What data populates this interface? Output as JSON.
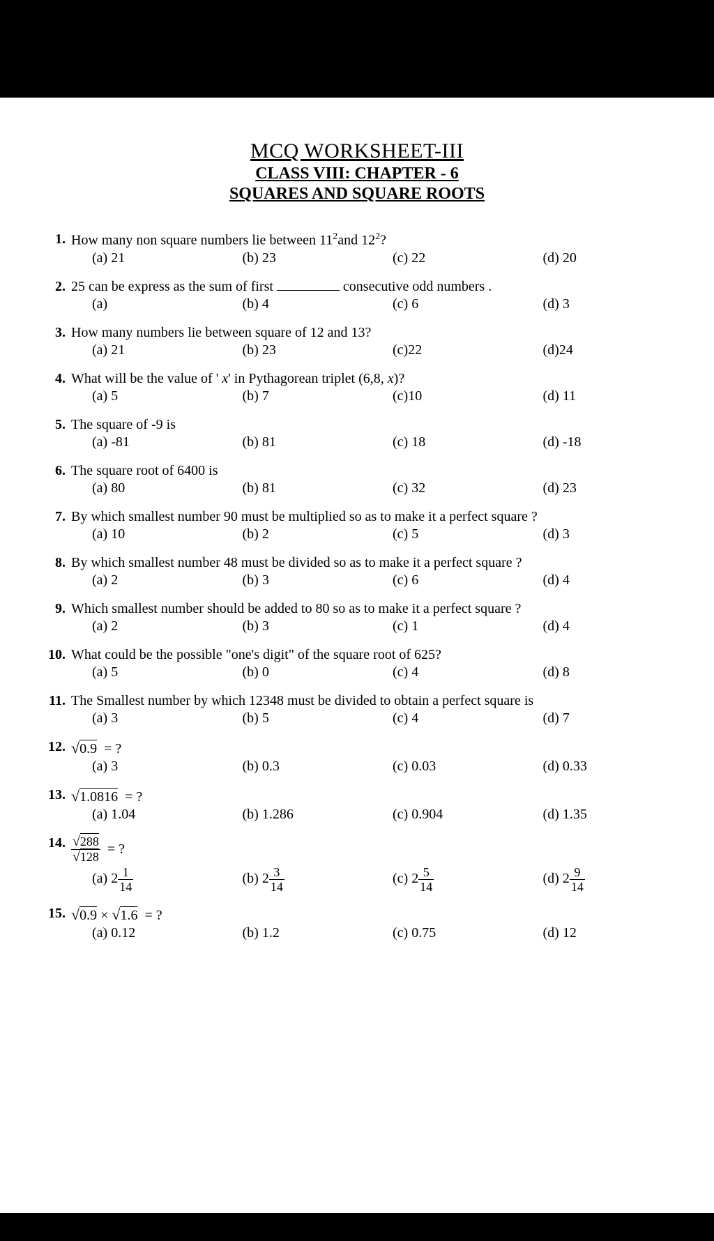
{
  "header": {
    "main": "MCQ WORKSHEET-III",
    "sub": "CLASS VIII: CHAPTER - 6",
    "topic": "SQUARES AND SQUARE ROOTS"
  },
  "questions": [
    {
      "num": "1.",
      "text_html": "How many non square numbers lie between 11<sup>2</sup>and 12<sup>2</sup>?",
      "opts": [
        "(a) 21",
        "(b) 23",
        "(c) 22",
        "(d) 20"
      ]
    },
    {
      "num": "2.",
      "text_html": "25 can be express as the sum of first <span class='blank'></span> consecutive odd numbers .",
      "opts": [
        "(a)",
        "(b) 4",
        "(c) 6",
        "(d) 3"
      ]
    },
    {
      "num": "3.",
      "text_html": "How many numbers lie between square of 12 and 13?",
      "opts": [
        "(a) 21",
        "(b) 23",
        "(c)22",
        "(d)24"
      ]
    },
    {
      "num": "4.",
      "text_html": "What will be the value of ' <i>x</i>' in Pythagorean triplet (6,8, <i>x</i>)?",
      "opts": [
        "(a) 5",
        "(b) 7",
        "(c)10",
        "(d) 11"
      ]
    },
    {
      "num": "5.",
      "text_html": "The square of -9 is",
      "opts": [
        "(a) -81",
        "(b) 81",
        "(c) 18",
        "(d) -18"
      ]
    },
    {
      "num": "6.",
      "text_html": "The square root of 6400 is",
      "opts": [
        "(a) 80",
        "(b) 81",
        "(c) 32",
        "(d) 23"
      ]
    },
    {
      "num": "7.",
      "text_html": "By which smallest number 90 must be multiplied so as to make it a perfect square ?",
      "opts": [
        "(a) 10",
        "(b) 2",
        "(c) 5",
        "(d) 3"
      ]
    },
    {
      "num": "8.",
      "text_html": "By which smallest number 48 must be divided so as to make it a perfect square ?",
      "opts": [
        "(a) 2",
        "(b) 3",
        "(c) 6",
        "(d) 4"
      ]
    },
    {
      "num": "9.",
      "text_html": "Which smallest number should be added to 80 so as to make it a perfect square ?",
      "opts": [
        "(a) 2",
        "(b) 3",
        "(c) 1",
        "(d) 4"
      ]
    },
    {
      "num": "10.",
      "text_html": "What could be the possible \"one's digit\" of the square root of 625?",
      "opts": [
        "(a) 5",
        "(b) 0",
        "(c) 4",
        "(d) 8"
      ]
    },
    {
      "num": "11.",
      "text_html": "The Smallest number by which 12348 must be divided to obtain a perfect square is",
      "opts": [
        "(a) 3",
        "(b) 5",
        "(c) 4",
        "(d) 7"
      ]
    },
    {
      "num": "12.",
      "text_html": "<span class='radical'>√</span><span class='sqrt'>0.9</span>&nbsp; = ?",
      "opts": [
        "(a) 3",
        "(b) 0.3",
        "(c) 0.03",
        "(d) 0.33"
      ]
    },
    {
      "num": "13.",
      "text_html": "<span class='radical'>√</span><span class='sqrt'>1.0816</span>&nbsp; = ?",
      "opts": [
        "(a) 1.04",
        "(b) 1.286",
        "(c) 0.904",
        "(d) 1.35"
      ]
    },
    {
      "num": "14.",
      "text_html": "<span class='frac'><span class='num'><span class='radical'>√</span><span class='sqrt'>288</span></span><span class='den'><span class='radical'>√</span><span class='sqrt'>128</span></span></span>&nbsp; = ?",
      "opts_html": [
        "(a) 2<span class='frac'><span class='num'>1</span><span class='den'>14</span></span>",
        "(b) 2<span class='frac'><span class='num'>3</span><span class='den'>14</span></span>",
        "(c) 2<span class='frac'><span class='num'>5</span><span class='den'>14</span></span>",
        "(d) 2<span class='frac'><span class='num'>9</span><span class='den'>14</span></span>"
      ]
    },
    {
      "num": "15.",
      "text_html": "<span class='radical'>√</span><span class='sqrt'>0.9</span> × <span class='radical'>√</span><span class='sqrt'>1.6</span>&nbsp; = ?",
      "opts": [
        "(a) 0.12",
        "(b) 1.2",
        "(c) 0.75",
        "(d) 12"
      ]
    }
  ]
}
